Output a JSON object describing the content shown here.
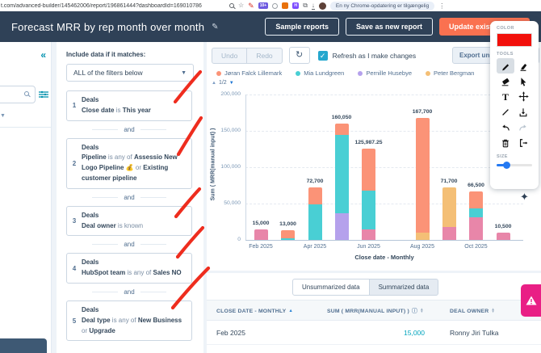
{
  "browser": {
    "url": "t.com/advanced-builder/145462006/report/196861444?dashboardId=169010786",
    "extension_badge": "10+",
    "update_pill": "En ny Chrome-opdatering er tilgængelig"
  },
  "header": {
    "title": "Forecast MRR by rep month over month",
    "buttons": {
      "sample": "Sample reports",
      "save_new": "Save as new report",
      "update": "Update exist"
    }
  },
  "filters": {
    "heading": "Include data if it matches:",
    "match_dropdown": "ALL of the filters below",
    "connector": "and",
    "items": [
      {
        "num": "1",
        "object": "Deals",
        "segments": [
          {
            "text": "Close date",
            "bold": true
          },
          {
            "text": " is ",
            "bold": false
          },
          {
            "text": "This year",
            "bold": true
          }
        ]
      },
      {
        "num": "2",
        "object": "Deals",
        "segments": [
          {
            "text": "Pipeline",
            "bold": true
          },
          {
            "text": " is any of ",
            "bold": false
          },
          {
            "text": "Assessio New Logo Pipeline 💰",
            "bold": true
          },
          {
            "text": " or ",
            "bold": false
          },
          {
            "text": "Existing customer pipeline",
            "bold": true
          }
        ]
      },
      {
        "num": "3",
        "object": "Deals",
        "segments": [
          {
            "text": "Deal owner",
            "bold": true
          },
          {
            "text": " is known",
            "bold": false
          }
        ]
      },
      {
        "num": "4",
        "object": "Deals",
        "segments": [
          {
            "text": "HubSpot team",
            "bold": true
          },
          {
            "text": " is any of ",
            "bold": false
          },
          {
            "text": "Sales NO",
            "bold": true
          }
        ]
      },
      {
        "num": "5",
        "object": "Deals",
        "segments": [
          {
            "text": "Deal type",
            "bold": true
          },
          {
            "text": " is any of ",
            "bold": false
          },
          {
            "text": "New Business",
            "bold": true
          },
          {
            "text": " or ",
            "bold": false
          },
          {
            "text": "Upgrade",
            "bold": true
          }
        ]
      }
    ]
  },
  "toolbar": {
    "undo": "Undo",
    "redo": "Redo",
    "refresh_label": "Refresh as I make changes",
    "export_label": "Export unsum"
  },
  "chart_data": {
    "type": "bar",
    "stacked": true,
    "categories": [
      "Feb 2025",
      "Mar 2025",
      "Apr 2025",
      "May 2025",
      "Jun 2025",
      "Jul 2025",
      "Aug 2025",
      "Sep 2025",
      "Oct 2025",
      "Nov 2025"
    ],
    "x_tick_labels": [
      "Feb 2025",
      "Apr 2025",
      "Jun 2025",
      "Aug 2025",
      "Oct 2025"
    ],
    "series": [
      {
        "name": "Jøran Falck Lillemark",
        "color": "#FB9377",
        "values": [
          0,
          11000,
          23700,
          16050,
          57987.25,
          0,
          157700,
          0,
          23000,
          0
        ]
      },
      {
        "name": "Mia Lundgreen",
        "color": "#49CFD4",
        "values": [
          0,
          2000,
          49000,
          107000,
          54000,
          0,
          0,
          0,
          12000,
          0
        ]
      },
      {
        "name": "Pernille Husebye",
        "color": "#B5A1EC",
        "values": [
          0,
          0,
          0,
          37000,
          0,
          0,
          0,
          0,
          0,
          0
        ]
      },
      {
        "name": "Peter Bergman",
        "color": "#F4BF76",
        "values": [
          0,
          0,
          0,
          0,
          0,
          0,
          10000,
          53700,
          0,
          0
        ]
      },
      {
        "name": "Ronny Jiri Tulka",
        "color": "#E886A9",
        "values": [
          15000,
          0,
          0,
          0,
          14000,
          0,
          0,
          18000,
          31500,
          10500
        ]
      }
    ],
    "stack_order": [
      "Ronny Jiri Tulka",
      "Pernille Husebye",
      "Mia Lundgreen",
      "Peter Bergman",
      "Jøran Falck Lillemark"
    ],
    "total_labels": [
      "15,000",
      "13,000",
      "72,700",
      "160,050",
      "125,987.25",
      "",
      "167,700",
      "71,700",
      "66,500",
      "10,500"
    ],
    "legend_page": "1/2",
    "ylabel": "Sum ( MRR(manual input) )",
    "xlabel": "Close date - Monthly",
    "ylim": [
      0,
      200000
    ],
    "yticks": [
      {
        "v": 0,
        "label": "0"
      },
      {
        "v": 50000,
        "label": "50,000"
      },
      {
        "v": 100000,
        "label": "100,000"
      },
      {
        "v": 150000,
        "label": "150,000"
      },
      {
        "v": 200000,
        "label": "200,000"
      }
    ]
  },
  "table": {
    "tabs": [
      "Unsummarized data",
      "Summarized data"
    ],
    "columns": [
      "CLOSE DATE - MONTHLY",
      "SUM ( MRR(MANUAL INPUT) )",
      "DEAL OWNER"
    ],
    "rows": [
      [
        "Feb 2025",
        "15,000",
        "Ronny Jiri Tulka"
      ]
    ]
  },
  "palette": {
    "color_label": "COLOR",
    "tools_label": "TOOLS",
    "size_label": "SIZE",
    "color": "#f2100b"
  }
}
